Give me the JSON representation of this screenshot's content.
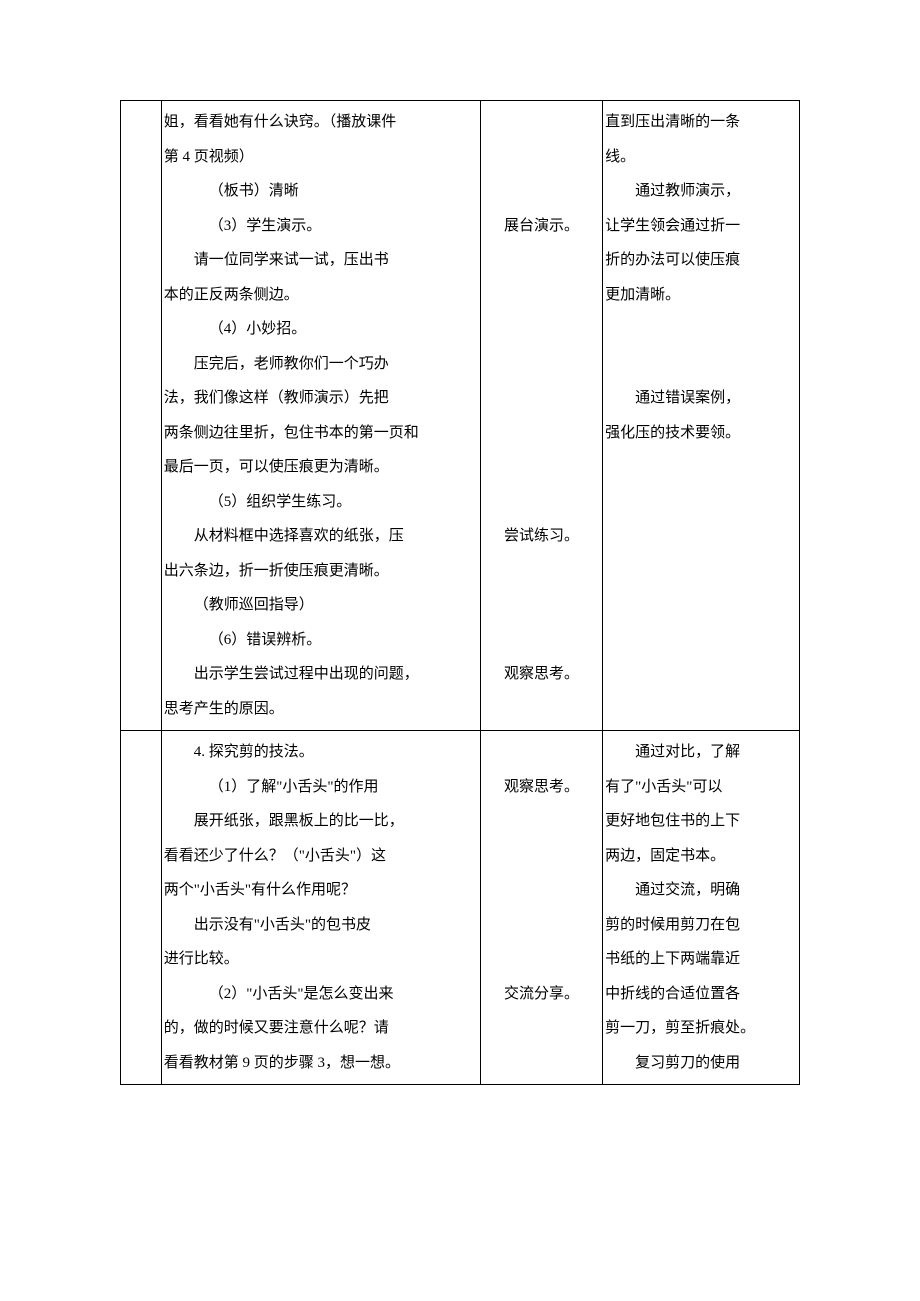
{
  "rows": [
    {
      "col1": "",
      "col2": [
        {
          "t": "姐，看看她有什么诀窍。（播放课件",
          "cls": "para"
        },
        {
          "t": "第 4 页视频）",
          "cls": "para"
        },
        {
          "t": "（板书）清晰",
          "cls": "para ind2"
        },
        {
          "t": "（3）学生演示。",
          "cls": "para ind2"
        },
        {
          "t": "请一位同学来试一试，压出书",
          "cls": "para ind1"
        },
        {
          "t": "本的正反两条侧边。",
          "cls": "para"
        },
        {
          "t": "（4）小妙招。",
          "cls": "para ind2"
        },
        {
          "t": "压完后，老师教你们一个巧办",
          "cls": "para ind1"
        },
        {
          "t": "法，我们像这样（教师演示）先把",
          "cls": "para"
        },
        {
          "t": "两条侧边往里折，包住书本的第一页和",
          "cls": "para"
        },
        {
          "t": "最后一页，可以使压痕更为清晰。",
          "cls": "para"
        },
        {
          "t": "（5）组织学生练习。",
          "cls": "para ind2"
        },
        {
          "t": "从材料框中选择喜欢的纸张，压",
          "cls": "para ind1"
        },
        {
          "t": "出六条边，折一折使压痕更清晰。",
          "cls": "para"
        },
        {
          "t": "（教师巡回指导）",
          "cls": "para ind1"
        },
        {
          "t": "（6）错误辨析。",
          "cls": "para ind2"
        },
        {
          "t": "出示学生尝试过程中出现的问题，",
          "cls": "para ind1"
        },
        {
          "t": "思考产生的原因。",
          "cls": "para"
        }
      ],
      "col3": [
        {
          "t": "",
          "cls": "para"
        },
        {
          "t": "",
          "cls": "para"
        },
        {
          "t": "",
          "cls": "para"
        },
        {
          "t": "展台演示。",
          "cls": "para center"
        },
        {
          "t": "",
          "cls": "para"
        },
        {
          "t": "",
          "cls": "para"
        },
        {
          "t": "",
          "cls": "para"
        },
        {
          "t": "",
          "cls": "para"
        },
        {
          "t": "",
          "cls": "para"
        },
        {
          "t": "",
          "cls": "para"
        },
        {
          "t": "",
          "cls": "para"
        },
        {
          "t": "",
          "cls": "para"
        },
        {
          "t": "尝试练习。",
          "cls": "para center"
        },
        {
          "t": "",
          "cls": "para"
        },
        {
          "t": "",
          "cls": "para"
        },
        {
          "t": "",
          "cls": "para"
        },
        {
          "t": "观察思考。",
          "cls": "para center"
        }
      ],
      "col4": [
        {
          "t": "直到压出清晰的一条",
          "cls": "para"
        },
        {
          "t": "线。",
          "cls": "para"
        },
        {
          "t": "通过教师演示，",
          "cls": "para ind1"
        },
        {
          "t": "让学生领会通过折一",
          "cls": "para"
        },
        {
          "t": "折的办法可以使压痕",
          "cls": "para"
        },
        {
          "t": "更加清晰。",
          "cls": "para"
        },
        {
          "t": "",
          "cls": "para"
        },
        {
          "t": "",
          "cls": "para"
        },
        {
          "t": "通过错误案例，",
          "cls": "para ind1"
        },
        {
          "t": "强化压的技术要领。",
          "cls": "para"
        }
      ]
    },
    {
      "col1": "",
      "col2": [
        {
          "t": "4. 探究剪的技法。",
          "cls": "para ind1"
        },
        {
          "t": "（1）了解\"小舌头\"的作用",
          "cls": "para ind2"
        },
        {
          "t": "展开纸张，跟黑板上的比一比，",
          "cls": "para ind1"
        },
        {
          "t": "看看还少了什么？（\"小舌头\"）这",
          "cls": "para"
        },
        {
          "t": "两个\"小舌头\"有什么作用呢？",
          "cls": "para"
        },
        {
          "t": "出示没有\"小舌头\"的包书皮",
          "cls": "para ind1"
        },
        {
          "t": "进行比较。",
          "cls": "para"
        },
        {
          "t": "（2）\"小舌头\"是怎么变出来",
          "cls": "para ind2"
        },
        {
          "t": "的，做的时候又要注意什么呢？请",
          "cls": "para"
        },
        {
          "t": "看看教材第 9 页的步骤 3，想一想。",
          "cls": "para"
        }
      ],
      "col3": [
        {
          "t": "",
          "cls": "para"
        },
        {
          "t": "观察思考。",
          "cls": "para center"
        },
        {
          "t": "",
          "cls": "para"
        },
        {
          "t": "",
          "cls": "para"
        },
        {
          "t": "",
          "cls": "para"
        },
        {
          "t": "",
          "cls": "para"
        },
        {
          "t": "",
          "cls": "para"
        },
        {
          "t": "交流分享。",
          "cls": "para center"
        }
      ],
      "col4": [
        {
          "t": "通过对比，了解",
          "cls": "para ind1"
        },
        {
          "t": "有了\"小舌头\"可以",
          "cls": "para"
        },
        {
          "t": "更好地包住书的上下",
          "cls": "para"
        },
        {
          "t": "两边，固定书本。",
          "cls": "para"
        },
        {
          "t": "通过交流，明确",
          "cls": "para ind1"
        },
        {
          "t": "剪的时候用剪刀在包",
          "cls": "para"
        },
        {
          "t": "书纸的上下两端靠近",
          "cls": "para"
        },
        {
          "t": "中折线的合适位置各",
          "cls": "para"
        },
        {
          "t": "剪一刀，剪至折痕处。",
          "cls": "para"
        },
        {
          "t": "复习剪刀的使用",
          "cls": "para ind1"
        }
      ]
    }
  ]
}
